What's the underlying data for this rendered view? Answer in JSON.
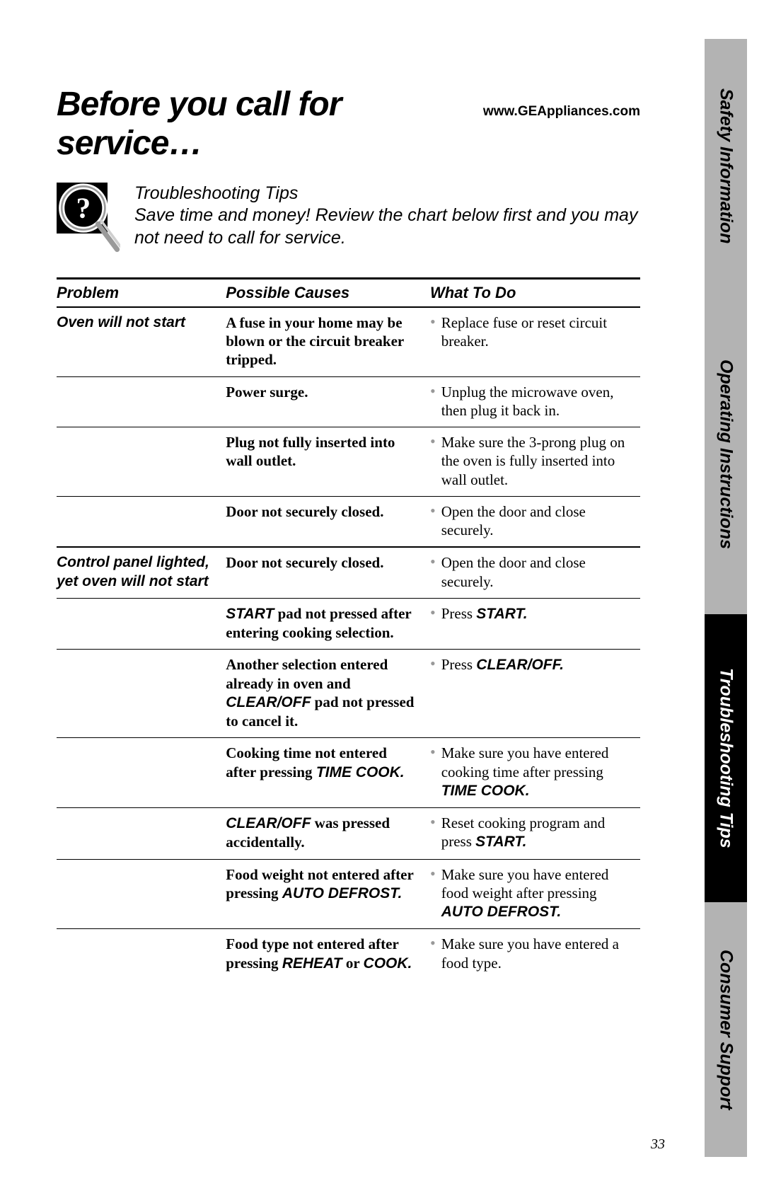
{
  "header": {
    "title": "Before you call for service…",
    "url": "www.GEAppliances.com"
  },
  "intro": {
    "heading": "Troubleshooting Tips",
    "body": "Save time and money! Review the chart below first and you may not need to call for service."
  },
  "table": {
    "columns": [
      "Problem",
      "Possible Causes",
      "What To Do"
    ],
    "groups": [
      {
        "problem": "Oven will not start",
        "rows": [
          {
            "cause_parts": [
              {
                "t": "A fuse in your home may be blown or the circuit breaker tripped."
              }
            ],
            "todo_parts": [
              {
                "t": "Replace fuse or reset circuit breaker."
              }
            ]
          },
          {
            "cause_parts": [
              {
                "t": "Power surge."
              }
            ],
            "todo_parts": [
              {
                "t": "Unplug the microwave oven, then plug it back in."
              }
            ]
          },
          {
            "cause_parts": [
              {
                "t": "Plug not fully inserted into wall outlet."
              }
            ],
            "todo_parts": [
              {
                "t": "Make sure the 3-prong plug on the oven is fully inserted into wall outlet."
              }
            ]
          },
          {
            "cause_parts": [
              {
                "t": "Door not securely closed."
              }
            ],
            "todo_parts": [
              {
                "t": "Open the door and close securely."
              }
            ]
          }
        ]
      },
      {
        "problem": "Control panel lighted, yet oven will not start",
        "rows": [
          {
            "cause_parts": [
              {
                "t": "Door not securely closed."
              }
            ],
            "todo_parts": [
              {
                "t": "Open the door and close securely."
              }
            ]
          },
          {
            "cause_parts": [
              {
                "t": "START",
                "bi": true
              },
              {
                "t": " pad not pressed after entering cooking selection."
              }
            ],
            "todo_parts": [
              {
                "t": "Press "
              },
              {
                "t": "START.",
                "bi": true
              }
            ]
          },
          {
            "cause_parts": [
              {
                "t": "Another selection entered already in oven and "
              },
              {
                "t": "CLEAR/OFF",
                "bi": true
              },
              {
                "t": " pad not pressed to cancel it."
              }
            ],
            "todo_parts": [
              {
                "t": "Press "
              },
              {
                "t": "CLEAR/OFF.",
                "bi": true
              }
            ]
          },
          {
            "cause_parts": [
              {
                "t": "Cooking time not entered after pressing "
              },
              {
                "t": "TIME COOK.",
                "bi": true
              }
            ],
            "todo_parts": [
              {
                "t": "Make sure you have entered cooking time after pressing "
              },
              {
                "t": "TIME COOK.",
                "bi": true
              }
            ]
          },
          {
            "cause_parts": [
              {
                "t": "CLEAR/OFF",
                "bi": true
              },
              {
                "t": " was pressed accidentally."
              }
            ],
            "todo_parts": [
              {
                "t": "Reset cooking program and press "
              },
              {
                "t": "START.",
                "bi": true
              }
            ]
          },
          {
            "cause_parts": [
              {
                "t": "Food weight not entered after pressing "
              },
              {
                "t": "AUTO DEFROST.",
                "bi": true
              }
            ],
            "todo_parts": [
              {
                "t": "Make sure you have entered food weight after pressing "
              },
              {
                "t": "AUTO DEFROST.",
                "bi": true
              }
            ]
          },
          {
            "cause_parts": [
              {
                "t": "Food type not entered after pressing "
              },
              {
                "t": "REHEAT",
                "bi": true
              },
              {
                "t": " or "
              },
              {
                "t": "COOK.",
                "bi": true
              }
            ],
            "todo_parts": [
              {
                "t": "Make sure you have entered a food type."
              }
            ]
          }
        ]
      }
    ]
  },
  "sidebar": {
    "tabs": [
      {
        "label": "Safety Information",
        "style": "gray",
        "flex": 1.05
      },
      {
        "label": "Operating Instructions",
        "style": "gray",
        "flex": 1.35
      },
      {
        "label": "Troubleshooting Tips",
        "style": "black",
        "flex": 1.2
      },
      {
        "label": "Consumer Support",
        "style": "gray",
        "flex": 1.05
      }
    ]
  },
  "page_number": "33",
  "colors": {
    "gray_tab": "#b3b3b3",
    "black": "#000000",
    "bullet": "#999999",
    "bg": "#ffffff"
  }
}
